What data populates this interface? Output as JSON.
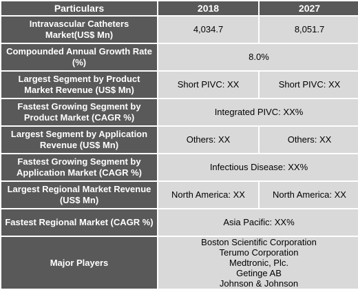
{
  "header": {
    "particulars": "Particulars",
    "year_a": "2018",
    "year_b": "2027"
  },
  "rows": {
    "market": {
      "label": "Intravascular Catheters Market(US$ Mn)",
      "val_2018": "4,034.7",
      "val_2027": "8,051.7"
    },
    "cagr": {
      "label": "Compounded Annual Growth Rate (%)",
      "value": "8.0%"
    },
    "largest_product": {
      "label": "Largest Segment by Product Market Revenue (US$ Mn)",
      "val_2018": "Short PIVC: XX",
      "val_2027": "Short PIVC: XX"
    },
    "fastest_product": {
      "label": "Fastest Growing Segment by Product Market (CAGR %)",
      "value": "Integrated PIVC:  XX%"
    },
    "largest_application": {
      "label": "Largest Segment by Application Revenue (US$ Mn)",
      "val_2018": "Others:  XX",
      "val_2027": "Others:  XX"
    },
    "fastest_application": {
      "label": "Fastest Growing Segment by Application Market (CAGR %)",
      "value": "Infectious Disease:  XX%"
    },
    "largest_regional": {
      "label": "Largest Regional Market Revenue (US$ Mn)",
      "val_2018": "North America: XX",
      "val_2027": "North America: XX"
    },
    "fastest_regional": {
      "label": "Fastest Regional Market (CAGR %)",
      "value": "Asia Pacific: XX%"
    },
    "major_players": {
      "label": "Major Players",
      "players": [
        "Boston Scientific Corporation",
        "Terumo Corporation",
        "Medtronic, Plc.",
        "Getinge AB",
        "Johnson & Johnson"
      ]
    }
  }
}
